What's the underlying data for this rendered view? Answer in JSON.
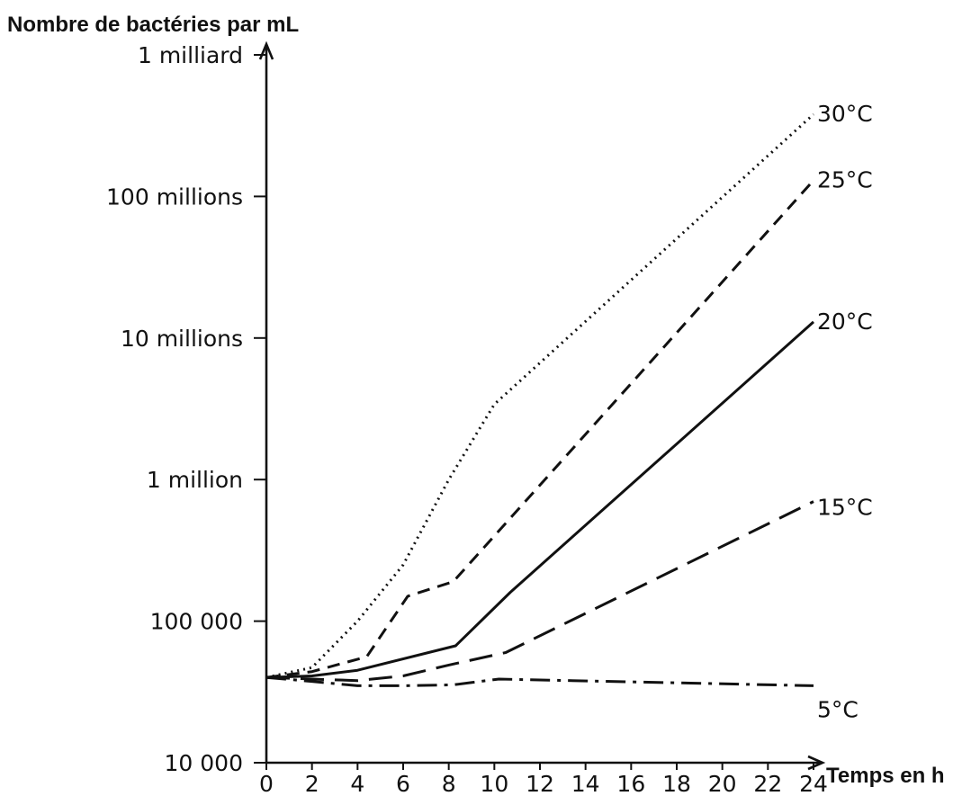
{
  "chart_data": {
    "type": "line",
    "ylabel": "Nombre de bactéries par mL",
    "xlabel": "Temps en h",
    "yscale": "log",
    "ylim": [
      10000,
      1000000000
    ],
    "xlim": [
      0,
      24
    ],
    "yticks": [
      {
        "value": 10000,
        "label": "10 000"
      },
      {
        "value": 100000,
        "label": "100 000"
      },
      {
        "value": 1000000,
        "label": "1 million"
      },
      {
        "value": 10000000,
        "label": "10 millions"
      },
      {
        "value": 100000000,
        "label": "100 millions"
      },
      {
        "value": 1000000000,
        "label": "1 milliard"
      }
    ],
    "xticks": [
      {
        "value": 0,
        "label": "0"
      },
      {
        "value": 2,
        "label": "2"
      },
      {
        "value": 4,
        "label": "4"
      },
      {
        "value": 6,
        "label": "6"
      },
      {
        "value": 8,
        "label": "8"
      },
      {
        "value": 10,
        "label": "10"
      },
      {
        "value": 12,
        "label": "12"
      },
      {
        "value": 14,
        "label": "14"
      },
      {
        "value": 16,
        "label": "16"
      },
      {
        "value": 18,
        "label": "18"
      },
      {
        "value": 20,
        "label": "20"
      },
      {
        "value": 22,
        "label": "22"
      },
      {
        "value": 24,
        "label": "24"
      }
    ],
    "grid": false,
    "legend": "inline labels at right end of each line",
    "series": [
      {
        "name": "30°C",
        "style": "dotted",
        "x": [
          0,
          2,
          4,
          6,
          8,
          10,
          24
        ],
        "y": [
          40000,
          47000,
          100000,
          250000,
          1000000,
          3400000,
          380000000
        ]
      },
      {
        "name": "25°C",
        "style": "dashed",
        "x": [
          0,
          2,
          4.4,
          6.2,
          8.2,
          24
        ],
        "y": [
          40000,
          44000,
          56000,
          150000,
          190000,
          130000000
        ]
      },
      {
        "name": "20°C",
        "style": "solid",
        "x": [
          0,
          2,
          4,
          8.3,
          10.7,
          24
        ],
        "y": [
          40000,
          41000,
          45000,
          67000,
          160000,
          13000000
        ]
      },
      {
        "name": "15°C",
        "style": "long-dash",
        "x": [
          0,
          2,
          4,
          6,
          8,
          10.5,
          24
        ],
        "y": [
          40000,
          39000,
          38000,
          41000,
          49000,
          60000,
          700000
        ]
      },
      {
        "name": "5°C",
        "style": "dash-dot",
        "x": [
          0,
          2,
          4,
          6,
          8.2,
          10.2,
          24
        ],
        "y": [
          40000,
          37500,
          35000,
          35000,
          35500,
          39000,
          35000
        ]
      }
    ]
  }
}
